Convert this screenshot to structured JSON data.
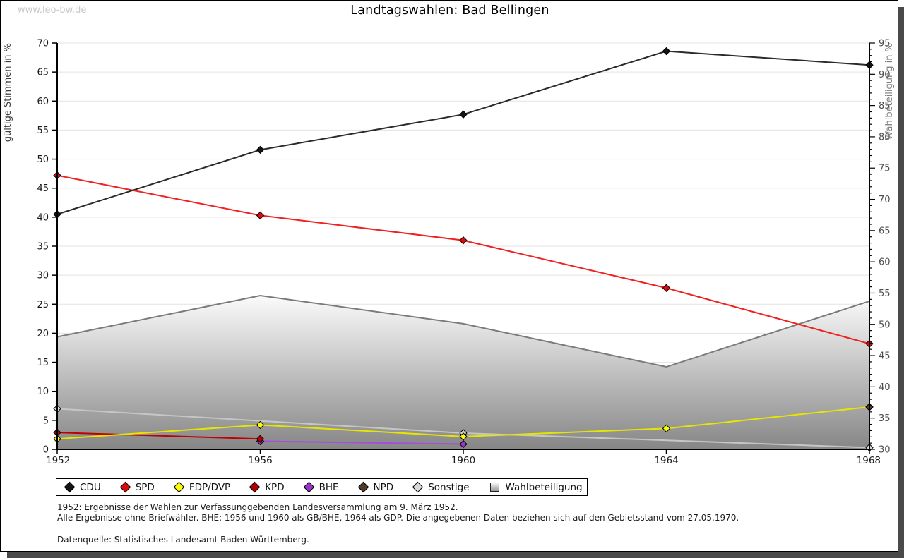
{
  "watermark": "www.leo-bw.de",
  "title": "Landtagswahlen: Bad Bellingen",
  "chart_data": {
    "type": "line",
    "title": "Landtagswahlen: Bad Bellingen",
    "x": [
      1952,
      1956,
      1960,
      1964,
      1968
    ],
    "x_tick_labels": [
      "1952",
      "1956",
      "1960",
      "1964",
      "1968"
    ],
    "left_axis": {
      "label": "gültige Stimmen in %",
      "min": 0,
      "max": 70,
      "step": 5
    },
    "right_axis": {
      "label": "Wahlbeteiligung in %",
      "min": 30,
      "max": 95,
      "step": 5,
      "minor_step": 1
    },
    "grid": true,
    "legend_position": "bottom",
    "series": [
      {
        "name": "CDU",
        "axis": "left",
        "color": "#141414",
        "line_color": "#2a2a2a",
        "values": [
          40.5,
          51.6,
          57.7,
          68.6,
          66.2
        ]
      },
      {
        "name": "SPD",
        "axis": "left",
        "color": "#dd0a0a",
        "line_color": "#ee2222",
        "values": [
          47.2,
          40.3,
          36.0,
          27.8,
          18.2
        ]
      },
      {
        "name": "FDP/DVP",
        "axis": "left",
        "color": "#ffff00",
        "line_color": "#e6e600",
        "values": [
          1.8,
          4.2,
          2.2,
          3.6,
          7.3
        ]
      },
      {
        "name": "KPD",
        "axis": "left",
        "color": "#b00000",
        "line_color": "#c00000",
        "values": [
          2.9,
          1.8,
          null,
          null,
          null
        ]
      },
      {
        "name": "BHE",
        "axis": "left",
        "color": "#9933cc",
        "line_color": "#a64ce0",
        "values": [
          null,
          1.4,
          0.9,
          null,
          null
        ]
      },
      {
        "name": "NPD",
        "axis": "left",
        "color": "#4f3a28",
        "line_color": "#4f3a28",
        "values": [
          null,
          null,
          null,
          null,
          7.3
        ]
      },
      {
        "name": "Sonstige",
        "axis": "left",
        "color": "#d9d9d9",
        "line_color": "#c6c6c6",
        "values": [
          7.0,
          null,
          2.8,
          null,
          0.3
        ]
      }
    ],
    "area_series": {
      "name": "Wahlbeteiligung",
      "axis": "right",
      "values": [
        48.0,
        54.6,
        50.1,
        43.2,
        53.7
      ],
      "fill_top": "#fbfbfb",
      "fill_bottom": "#868686",
      "outline": "#7b7b7b"
    }
  },
  "footnotes": [
    "1952: Ergebnisse der Wahlen zur Verfassunggebenden Landesversammlung am 9. März 1952.",
    "Alle Ergebnisse ohne Briefwähler. BHE: 1956 und 1960 als GB/BHE, 1964 als GDP. Die angegebenen Daten beziehen sich auf den Gebietsstand vom 27.05.1970.",
    "Datenquelle: Statistisches Landesamt Baden-Württemberg."
  ]
}
